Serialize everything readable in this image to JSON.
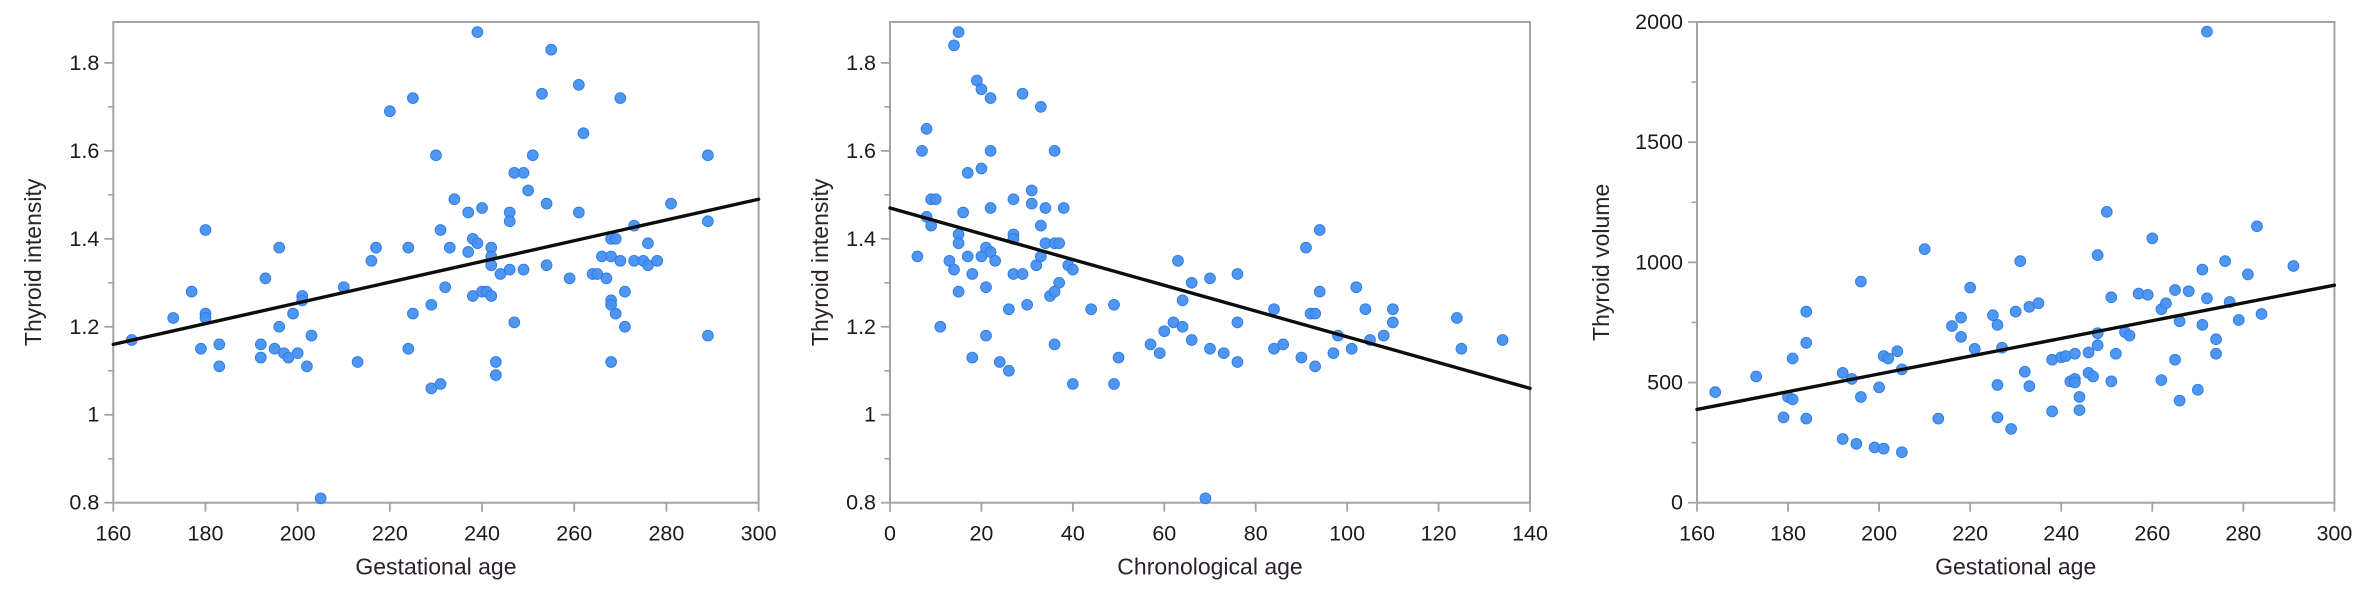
{
  "figure": {
    "background": "#ffffff",
    "point_color": "#4690f1",
    "point_edge_color": "#2e7ce0",
    "trend_color": "#0d0d0d",
    "frame_color": "#a3a3a3",
    "tick_label_color": "#1b1b1b",
    "axis_title_color": "#2b222b"
  },
  "chart_data": [
    {
      "type": "scatter",
      "title": "",
      "xlabel": "Gestational age",
      "ylabel": "Thyroid intensity",
      "xlim": [
        160,
        300
      ],
      "ylim": [
        0.8,
        1.893
      ],
      "xticks": [
        160,
        180,
        200,
        220,
        240,
        260,
        280,
        300
      ],
      "yticks": [
        0.8,
        1,
        1.2,
        1.4,
        1.6,
        1.8
      ],
      "ytick_labels": [
        "0.8",
        "1",
        "1.2",
        "1.4",
        "1.6",
        "1.8"
      ],
      "yticks_minor": [
        0.9,
        1.1,
        1.3,
        1.5,
        1.7
      ],
      "grid": false,
      "legend": null,
      "trend": {
        "x1": 160,
        "y1": 1.16,
        "x2": 300,
        "y2": 1.49
      },
      "points": [
        [
          164,
          1.17
        ],
        [
          173,
          1.22
        ],
        [
          177,
          1.28
        ],
        [
          179,
          1.15
        ],
        [
          180,
          1.42
        ],
        [
          180,
          1.23
        ],
        [
          180,
          1.22
        ],
        [
          183,
          1.16
        ],
        [
          183,
          1.11
        ],
        [
          192,
          1.16
        ],
        [
          192,
          1.13
        ],
        [
          193,
          1.31
        ],
        [
          195,
          1.15
        ],
        [
          196,
          1.38
        ],
        [
          196,
          1.2
        ],
        [
          197,
          1.14
        ],
        [
          198,
          1.13
        ],
        [
          199,
          1.23
        ],
        [
          200,
          1.14
        ],
        [
          201,
          1.27
        ],
        [
          201,
          1.26
        ],
        [
          202,
          1.11
        ],
        [
          203,
          1.18
        ],
        [
          205,
          0.81
        ],
        [
          210,
          1.29
        ],
        [
          213,
          1.12
        ],
        [
          216,
          1.35
        ],
        [
          217,
          1.38
        ],
        [
          220,
          1.69
        ],
        [
          224,
          1.38
        ],
        [
          224,
          1.15
        ],
        [
          225,
          1.72
        ],
        [
          225,
          1.23
        ],
        [
          229,
          1.06
        ],
        [
          231,
          1.07
        ],
        [
          229,
          1.25
        ],
        [
          230,
          1.59
        ],
        [
          231,
          1.42
        ],
        [
          232,
          1.29
        ],
        [
          233,
          1.38
        ],
        [
          234,
          1.49
        ],
        [
          237,
          1.46
        ],
        [
          237,
          1.37
        ],
        [
          238,
          1.4
        ],
        [
          238,
          1.27
        ],
        [
          239,
          1.87
        ],
        [
          239,
          1.39
        ],
        [
          240,
          1.47
        ],
        [
          240,
          1.28
        ],
        [
          241,
          1.28
        ],
        [
          242,
          1.38
        ],
        [
          242,
          1.36
        ],
        [
          242,
          1.34
        ],
        [
          242,
          1.27
        ],
        [
          243,
          1.12
        ],
        [
          243,
          1.09
        ],
        [
          244,
          1.32
        ],
        [
          246,
          1.46
        ],
        [
          246,
          1.44
        ],
        [
          246,
          1.33
        ],
        [
          247,
          1.55
        ],
        [
          247,
          1.21
        ],
        [
          249,
          1.55
        ],
        [
          249,
          1.33
        ],
        [
          250,
          1.51
        ],
        [
          251,
          1.59
        ],
        [
          253,
          1.73
        ],
        [
          254,
          1.48
        ],
        [
          254,
          1.34
        ],
        [
          255,
          1.83
        ],
        [
          259,
          1.31
        ],
        [
          261,
          1.75
        ],
        [
          261,
          1.46
        ],
        [
          262,
          1.64
        ],
        [
          264,
          1.32
        ],
        [
          265,
          1.32
        ],
        [
          266,
          1.36
        ],
        [
          267,
          1.31
        ],
        [
          268,
          1.4
        ],
        [
          268,
          1.36
        ],
        [
          268,
          1.26
        ],
        [
          268,
          1.25
        ],
        [
          268,
          1.12
        ],
        [
          269,
          1.4
        ],
        [
          269,
          1.23
        ],
        [
          270,
          1.72
        ],
        [
          270,
          1.35
        ],
        [
          271,
          1.28
        ],
        [
          271,
          1.2
        ],
        [
          273,
          1.43
        ],
        [
          273,
          1.35
        ],
        [
          275,
          1.35
        ],
        [
          276,
          1.39
        ],
        [
          276,
          1.34
        ],
        [
          278,
          1.35
        ],
        [
          281,
          1.48
        ],
        [
          289,
          1.59
        ],
        [
          289,
          1.44
        ],
        [
          289,
          1.18
        ]
      ]
    },
    {
      "type": "scatter",
      "title": "",
      "xlabel": "Chronological age",
      "ylabel": "Thyroid intensity",
      "xlim": [
        0,
        140
      ],
      "ylim": [
        0.8,
        1.893
      ],
      "xticks": [
        0,
        20,
        40,
        60,
        80,
        100,
        120,
        140
      ],
      "yticks": [
        0.8,
        1,
        1.2,
        1.4,
        1.6,
        1.8
      ],
      "ytick_labels": [
        "0.8",
        "1",
        "1.2",
        "1.4",
        "1.6",
        "1.8"
      ],
      "yticks_minor": [
        0.9,
        1.1,
        1.3,
        1.5,
        1.7
      ],
      "grid": false,
      "legend": null,
      "trend": {
        "x1": 0,
        "y1": 1.47,
        "x2": 140,
        "y2": 1.06
      },
      "points": [
        [
          6,
          1.36
        ],
        [
          7,
          1.6
        ],
        [
          8,
          1.65
        ],
        [
          8,
          1.45
        ],
        [
          9,
          1.49
        ],
        [
          9,
          1.43
        ],
        [
          10,
          1.49
        ],
        [
          11,
          1.2
        ],
        [
          13,
          1.35
        ],
        [
          14,
          1.84
        ],
        [
          14,
          1.33
        ],
        [
          15,
          1.87
        ],
        [
          15,
          1.41
        ],
        [
          15,
          1.39
        ],
        [
          15,
          1.28
        ],
        [
          16,
          1.46
        ],
        [
          17,
          1.55
        ],
        [
          17,
          1.36
        ],
        [
          18,
          1.32
        ],
        [
          18,
          1.13
        ],
        [
          19,
          1.76
        ],
        [
          20,
          1.74
        ],
        [
          20,
          1.56
        ],
        [
          20,
          1.36
        ],
        [
          21,
          1.38
        ],
        [
          21,
          1.29
        ],
        [
          21,
          1.18
        ],
        [
          22,
          1.72
        ],
        [
          22,
          1.6
        ],
        [
          22,
          1.47
        ],
        [
          22,
          1.37
        ],
        [
          23,
          1.35
        ],
        [
          24,
          1.12
        ],
        [
          26,
          1.24
        ],
        [
          26,
          1.1
        ],
        [
          27,
          1.49
        ],
        [
          27,
          1.41
        ],
        [
          27,
          1.4
        ],
        [
          27,
          1.32
        ],
        [
          29,
          1.73
        ],
        [
          29,
          1.32
        ],
        [
          30,
          1.25
        ],
        [
          31,
          1.51
        ],
        [
          31,
          1.48
        ],
        [
          32,
          1.34
        ],
        [
          33,
          1.7
        ],
        [
          33,
          1.43
        ],
        [
          33,
          1.36
        ],
        [
          34,
          1.47
        ],
        [
          34,
          1.39
        ],
        [
          35,
          1.27
        ],
        [
          36,
          1.6
        ],
        [
          36,
          1.39
        ],
        [
          36,
          1.28
        ],
        [
          36,
          1.16
        ],
        [
          37,
          1.39
        ],
        [
          37,
          1.3
        ],
        [
          38,
          1.47
        ],
        [
          39,
          1.34
        ],
        [
          40,
          1.33
        ],
        [
          40,
          1.07
        ],
        [
          44,
          1.24
        ],
        [
          49,
          1.25
        ],
        [
          49,
          1.07
        ],
        [
          50,
          1.13
        ],
        [
          57,
          1.16
        ],
        [
          59,
          1.14
        ],
        [
          60,
          1.19
        ],
        [
          62,
          1.21
        ],
        [
          63,
          1.35
        ],
        [
          64,
          1.26
        ],
        [
          64,
          1.2
        ],
        [
          66,
          1.3
        ],
        [
          66,
          1.17
        ],
        [
          69,
          0.81
        ],
        [
          70,
          1.31
        ],
        [
          70,
          1.15
        ],
        [
          73,
          1.14
        ],
        [
          76,
          1.32
        ],
        [
          76,
          1.21
        ],
        [
          76,
          1.12
        ],
        [
          84,
          1.24
        ],
        [
          84,
          1.15
        ],
        [
          86,
          1.16
        ],
        [
          90,
          1.13
        ],
        [
          91,
          1.38
        ],
        [
          92,
          1.23
        ],
        [
          93,
          1.23
        ],
        [
          93,
          1.11
        ],
        [
          94,
          1.42
        ],
        [
          94,
          1.28
        ],
        [
          97,
          1.14
        ],
        [
          98,
          1.18
        ],
        [
          101,
          1.15
        ],
        [
          102,
          1.29
        ],
        [
          104,
          1.24
        ],
        [
          105,
          1.17
        ],
        [
          108,
          1.18
        ],
        [
          110,
          1.24
        ],
        [
          110,
          1.21
        ],
        [
          124,
          1.22
        ],
        [
          125,
          1.15
        ],
        [
          134,
          1.17
        ]
      ]
    },
    {
      "type": "scatter",
      "title": "",
      "xlabel": "Gestational age",
      "ylabel": "Thyroid volume",
      "xlim": [
        160,
        300
      ],
      "ylim": [
        0,
        2000
      ],
      "xticks": [
        160,
        180,
        200,
        220,
        240,
        260,
        280,
        300
      ],
      "yticks": [
        0,
        500,
        1000,
        1500,
        2000
      ],
      "ytick_labels": [
        "0",
        "500",
        "1000",
        "1500",
        "2000"
      ],
      "yticks_minor": [
        250,
        750,
        1250,
        1750
      ],
      "grid": false,
      "legend": null,
      "trend": {
        "x1": 160,
        "y1": 388,
        "x2": 300,
        "y2": 905
      },
      "points": [
        [
          164,
          460
        ],
        [
          173,
          525
        ],
        [
          179,
          355
        ],
        [
          180,
          440
        ],
        [
          181,
          430
        ],
        [
          181,
          600
        ],
        [
          184,
          795
        ],
        [
          184,
          665
        ],
        [
          184,
          350
        ],
        [
          192,
          540
        ],
        [
          192,
          265
        ],
        [
          194,
          515
        ],
        [
          195,
          245
        ],
        [
          196,
          920
        ],
        [
          196,
          440
        ],
        [
          199,
          230
        ],
        [
          200,
          480
        ],
        [
          201,
          610
        ],
        [
          201,
          225
        ],
        [
          202,
          600
        ],
        [
          204,
          630
        ],
        [
          205,
          555
        ],
        [
          205,
          210
        ],
        [
          210,
          1055
        ],
        [
          213,
          350
        ],
        [
          216,
          735
        ],
        [
          218,
          770
        ],
        [
          218,
          690
        ],
        [
          220,
          895
        ],
        [
          221,
          640
        ],
        [
          225,
          780
        ],
        [
          226,
          740
        ],
        [
          226,
          490
        ],
        [
          226,
          355
        ],
        [
          227,
          645
        ],
        [
          229,
          307
        ],
        [
          230,
          795
        ],
        [
          231,
          1005
        ],
        [
          232,
          545
        ],
        [
          233,
          815
        ],
        [
          233,
          485
        ],
        [
          235,
          830
        ],
        [
          238,
          595
        ],
        [
          238,
          380
        ],
        [
          240,
          605
        ],
        [
          241,
          610
        ],
        [
          242,
          505
        ],
        [
          243,
          620
        ],
        [
          243,
          515
        ],
        [
          243,
          500
        ],
        [
          244,
          440
        ],
        [
          244,
          385
        ],
        [
          246,
          625
        ],
        [
          246,
          540
        ],
        [
          247,
          525
        ],
        [
          248,
          1030
        ],
        [
          248,
          705
        ],
        [
          248,
          655
        ],
        [
          250,
          1210
        ],
        [
          251,
          855
        ],
        [
          251,
          505
        ],
        [
          252,
          620
        ],
        [
          254,
          710
        ],
        [
          255,
          695
        ],
        [
          257,
          870
        ],
        [
          259,
          865
        ],
        [
          260,
          1100
        ],
        [
          262,
          805
        ],
        [
          262,
          510
        ],
        [
          263,
          830
        ],
        [
          265,
          885
        ],
        [
          265,
          595
        ],
        [
          266,
          755
        ],
        [
          266,
          425
        ],
        [
          268,
          880
        ],
        [
          270,
          470
        ],
        [
          271,
          970
        ],
        [
          271,
          740
        ],
        [
          272,
          1960
        ],
        [
          272,
          850
        ],
        [
          274,
          680
        ],
        [
          274,
          620
        ],
        [
          276,
          1005
        ],
        [
          277,
          835
        ],
        [
          279,
          760
        ],
        [
          281,
          950
        ],
        [
          283,
          1150
        ],
        [
          284,
          785
        ],
        [
          291,
          985
        ]
      ]
    }
  ]
}
